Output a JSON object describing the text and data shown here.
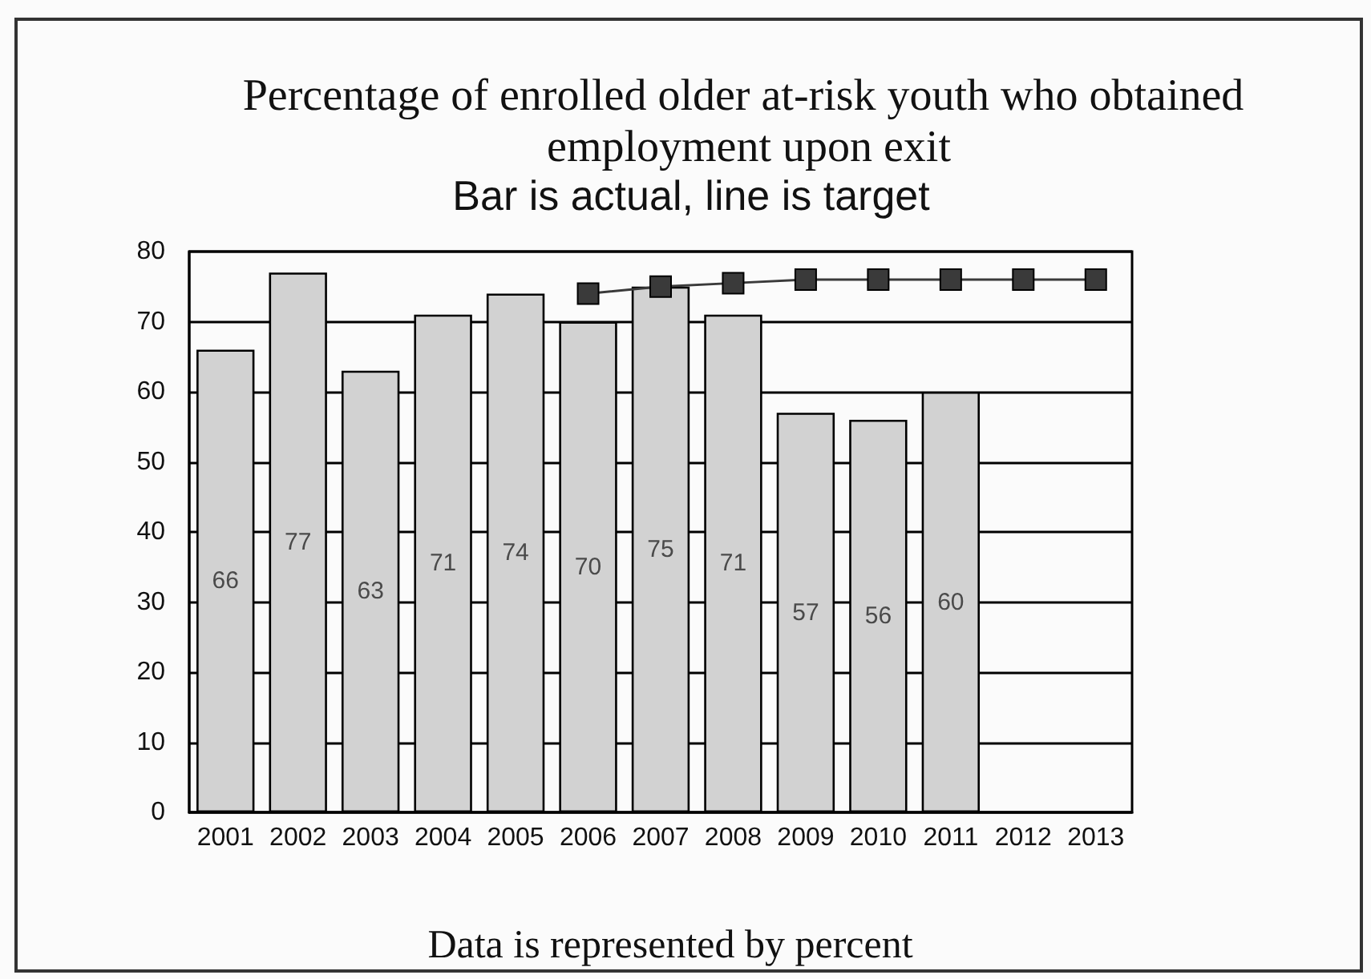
{
  "chart_data": {
    "type": "bar",
    "title": "Percentage of enrolled older at-risk youth who obtained employment upon exit",
    "subtitle": "Bar is actual, line is target",
    "annotations": [
      "Data is represented by percent"
    ],
    "categories": [
      "2001",
      "2002",
      "2003",
      "2004",
      "2005",
      "2006",
      "2007",
      "2008",
      "2009",
      "2010",
      "2011",
      "2012",
      "2013"
    ],
    "series": [
      {
        "color": "#d2d2d2",
        "values": [
          66,
          77,
          63,
          71,
          74,
          70,
          75,
          71,
          57,
          56,
          60,
          null,
          null
        ],
        "value_labels": [
          "66",
          "77",
          "63",
          "71",
          "74",
          "70",
          "75",
          "71",
          "57",
          "56",
          "60",
          null,
          null
        ]
      },
      {
        "type": "line",
        "color": "#3a3a3a",
        "values": [
          null,
          null,
          null,
          null,
          null,
          74,
          75,
          75.5,
          76,
          76,
          76,
          76,
          76
        ]
      }
    ],
    "ylim": [
      0,
      80
    ],
    "yticks": [
      0,
      10,
      20,
      30,
      40,
      50,
      60,
      70,
      80
    ],
    "grid": "y",
    "marker": "square",
    "line_style": "solid"
  }
}
